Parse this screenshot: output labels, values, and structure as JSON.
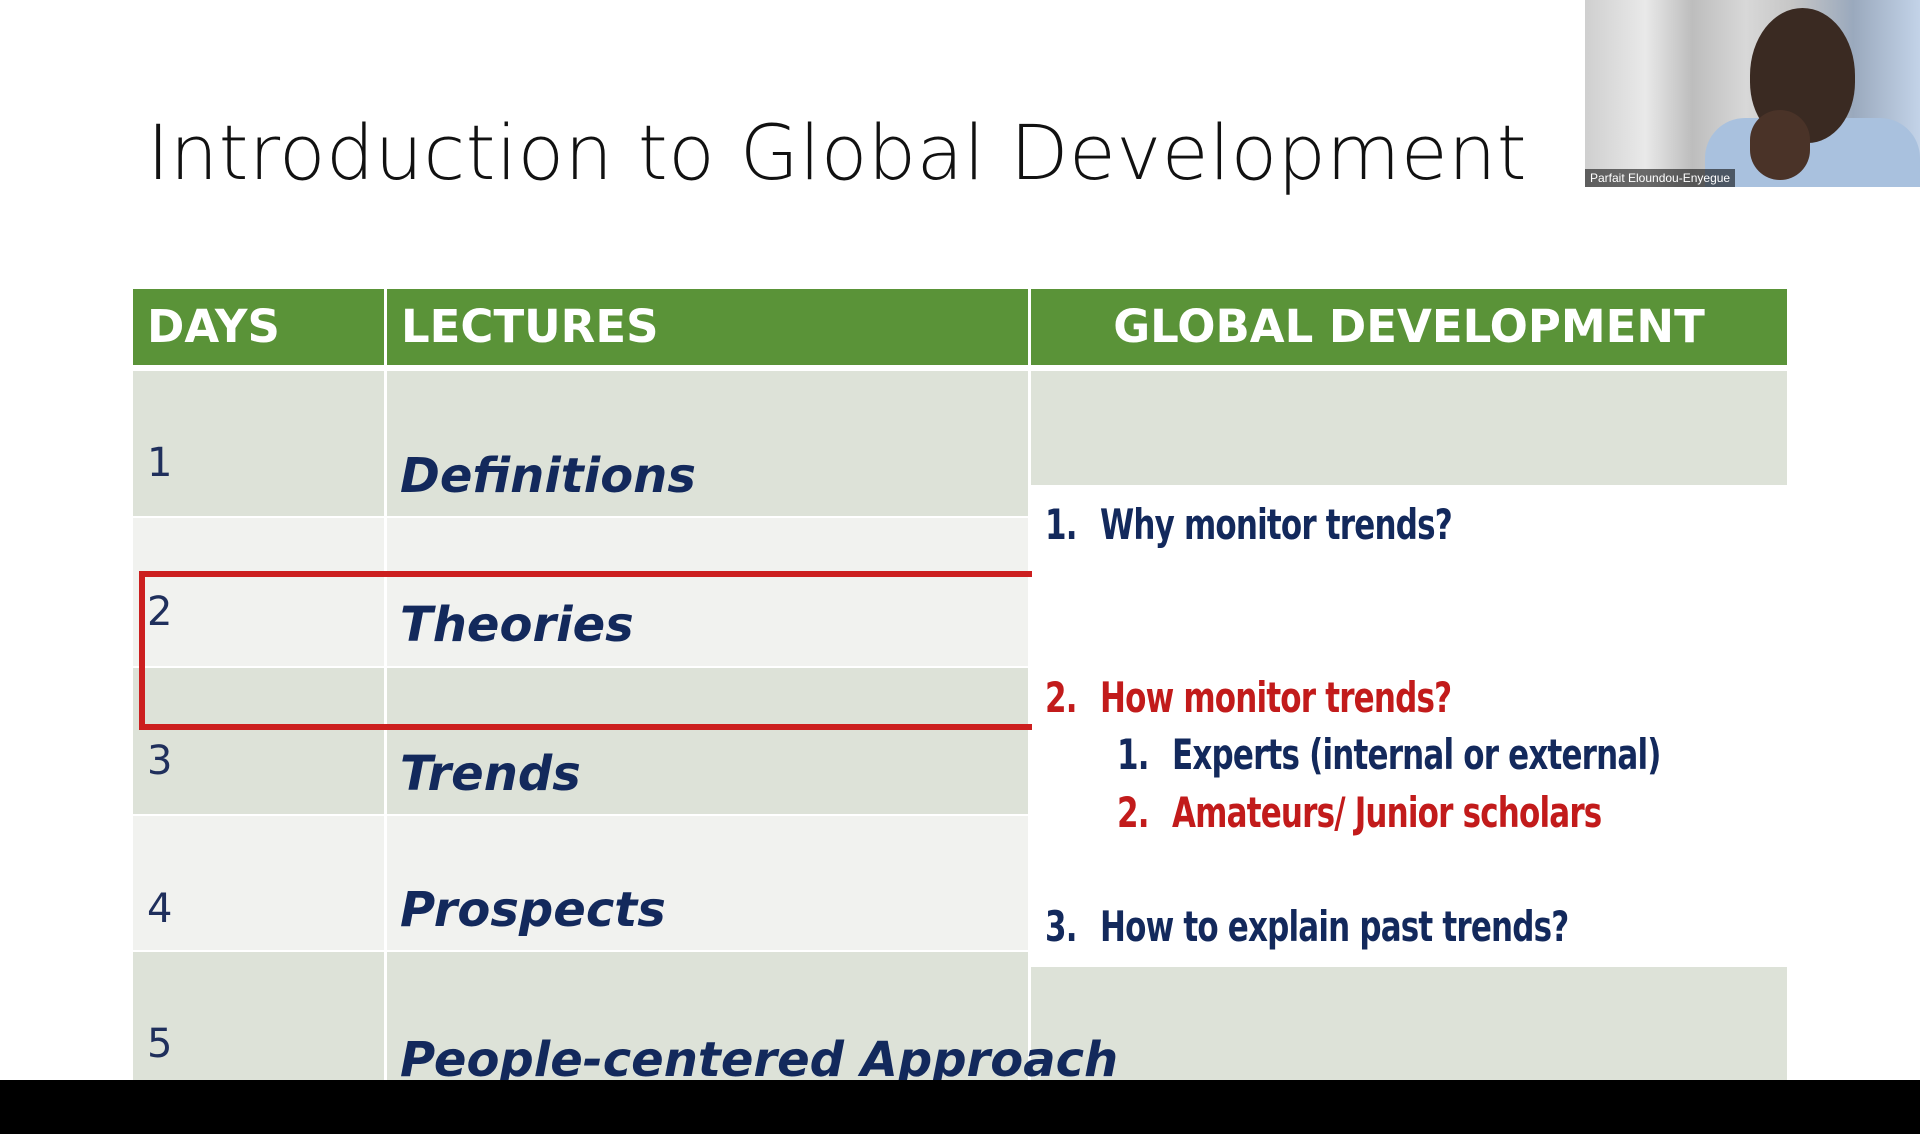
{
  "slide": {
    "title": "Introduction to Global Development",
    "headers": {
      "days": "DAYS",
      "lectures": "LECTURES",
      "global_development": "GLOBAL DEVELOPMENT"
    },
    "rows": [
      {
        "day": "1",
        "lecture": "Definitions"
      },
      {
        "day": "2",
        "lecture": "Theories"
      },
      {
        "day": "3",
        "lecture": "Trends"
      },
      {
        "day": "4",
        "lecture": "Prospects"
      },
      {
        "day": "5",
        "lecture": "People-centered Approach"
      }
    ],
    "global_development_items": [
      {
        "num": "1.",
        "text": "Why monitor trends?",
        "color": "#13295c"
      },
      {
        "num": "2.",
        "text": "How monitor trends?",
        "color": "#c21b1b",
        "subitems": [
          {
            "num": "1.",
            "text": "Experts (internal or external)",
            "color": "#13295c"
          },
          {
            "num": "2.",
            "text": "Amateurs/ Junior scholars",
            "color": "#c21b1b"
          }
        ]
      },
      {
        "num": "3.",
        "text": "How to explain past trends?",
        "color": "#13295c"
      }
    ],
    "highlight_color": "#cc1f1f",
    "header_color": "#5a9338"
  },
  "video": {
    "participant_name": "Parfait Eloundou-Enyegue"
  }
}
